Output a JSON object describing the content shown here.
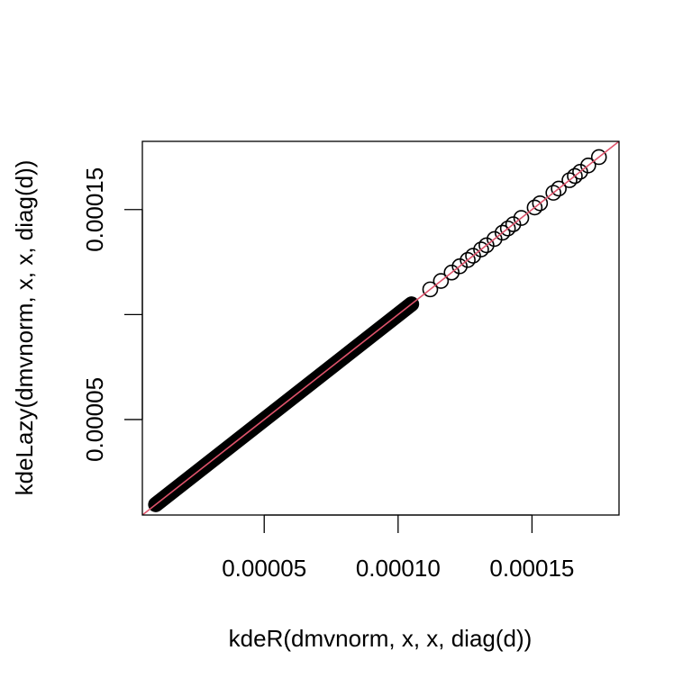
{
  "chart_data": {
    "type": "scatter",
    "title": "",
    "xlabel": "kdeR(dmvnorm, x, x, diag(d))",
    "ylabel": "kdeLazy(dmvnorm, x, x, diag(d))",
    "xlim": [
      4.5e-06,
      0.0001825
    ],
    "ylim": [
      4.5e-06,
      0.0001825
    ],
    "x_ticks": [
      5e-05,
      0.0001,
      0.00015
    ],
    "x_tick_labels": [
      "0.00005",
      "0.00010",
      "0.00015"
    ],
    "y_ticks": [
      5e-05,
      0.0001,
      0.00015
    ],
    "y_tick_labels": [
      "0.00005",
      "",
      "0.00015"
    ],
    "grid": false,
    "legend": "none",
    "point_color": "#000000",
    "reference_line": {
      "type": "identity",
      "intercept": 0,
      "slope": 1,
      "color": "#DF536B"
    },
    "dense_range": [
      9.5e-06,
      0.000105
    ],
    "series": [
      {
        "x": [
          0.000112,
          0.000116,
          0.00012,
          0.000123,
          0.000126,
          0.000128,
          0.000131,
          0.000133,
          0.000136,
          0.000139,
          0.000141,
          0.000143,
          0.000146,
          0.000151,
          0.000153,
          0.000158,
          0.00016,
          0.000164,
          0.000166,
          0.000168,
          0.000171,
          0.000175
        ],
        "y": [
          0.000112,
          0.000116,
          0.00012,
          0.000123,
          0.000126,
          0.000128,
          0.000131,
          0.000133,
          0.000136,
          0.000139,
          0.000141,
          0.000143,
          0.000146,
          0.000151,
          0.000153,
          0.000158,
          0.00016,
          0.000164,
          0.000166,
          0.000168,
          0.000171,
          0.000175
        ]
      }
    ]
  }
}
